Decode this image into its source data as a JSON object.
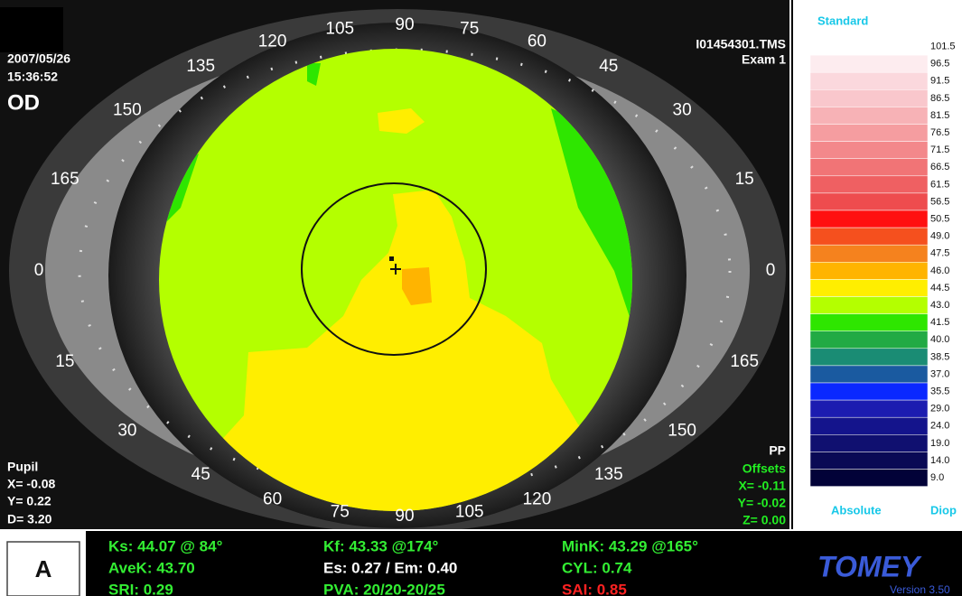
{
  "header": {
    "date": "2007/05/26",
    "time": "15:36:52",
    "eye": "OD",
    "file": "I01454301.TMS",
    "exam": "Exam 1"
  },
  "angle_labels": [
    "0",
    "15",
    "30",
    "45",
    "60",
    "75",
    "90",
    "105",
    "120",
    "135",
    "150",
    "165",
    "0",
    "15",
    "30",
    "45",
    "60",
    "75",
    "90",
    "105",
    "120",
    "135",
    "150",
    "165"
  ],
  "pupil": {
    "title": "Pupil",
    "x": "X= -0.08",
    "y": "Y=  0.22",
    "d": "D=  3.20"
  },
  "offsets": {
    "pp": "PP",
    "title": "Offsets",
    "x": "X= -0.11",
    "y": "Y= -0.02",
    "z": "Z=  0.00"
  },
  "scale": {
    "title": "Standard",
    "mode": "Absolute",
    "unit": "Diop",
    "steps": [
      {
        "label": "101.5",
        "color": "#ffffff"
      },
      {
        "label": "96.5",
        "color": "#fdecef"
      },
      {
        "label": "91.5",
        "color": "#fbd8dd"
      },
      {
        "label": "86.5",
        "color": "#f9c7cc"
      },
      {
        "label": "81.5",
        "color": "#f7b2b6"
      },
      {
        "label": "76.5",
        "color": "#f59da0"
      },
      {
        "label": "71.5",
        "color": "#f3888b"
      },
      {
        "label": "66.5",
        "color": "#f17476"
      },
      {
        "label": "61.5",
        "color": "#ef6062"
      },
      {
        "label": "56.5",
        "color": "#ee4c4e"
      },
      {
        "label": "50.5",
        "color": "#ff1010"
      },
      {
        "label": "49.0",
        "color": "#f5501e"
      },
      {
        "label": "47.5",
        "color": "#f5821e"
      },
      {
        "label": "46.0",
        "color": "#ffb400"
      },
      {
        "label": "44.5",
        "color": "#ffee00"
      },
      {
        "label": "43.0",
        "color": "#b4ff00"
      },
      {
        "label": "41.5",
        "color": "#2ee600"
      },
      {
        "label": "40.0",
        "color": "#22aa44"
      },
      {
        "label": "38.5",
        "color": "#1a8c74"
      },
      {
        "label": "37.0",
        "color": "#1a5aa0"
      },
      {
        "label": "35.5",
        "color": "#0a28ff"
      },
      {
        "label": "29.0",
        "color": "#1c1cb0"
      },
      {
        "label": "24.0",
        "color": "#14148c"
      },
      {
        "label": "19.0",
        "color": "#101070"
      },
      {
        "label": "14.0",
        "color": "#0a0a55"
      },
      {
        "label": "9.0",
        "color": "#020238"
      }
    ]
  },
  "footer": {
    "panel": "A",
    "stats": [
      [
        "Ks: 44.07 @ 84°",
        "AveK: 43.70",
        "SRI: 0.29"
      ],
      [
        "Kf: 43.33 @174°",
        "Es: 0.27 / Em: 0.40",
        "PVA: 20/20-20/25"
      ],
      [
        "MinK: 43.29 @165°",
        "CYL: 0.74",
        "SAI: 0.85"
      ]
    ],
    "brand": "TOMEY",
    "version": "Version 3.50"
  }
}
